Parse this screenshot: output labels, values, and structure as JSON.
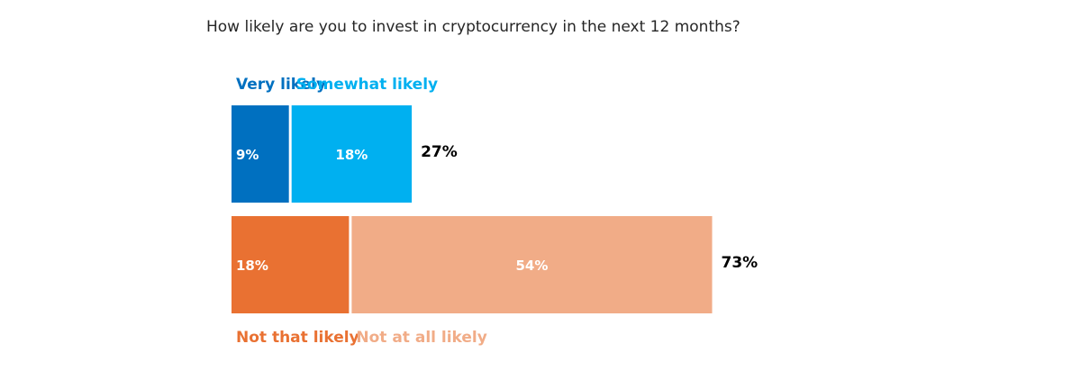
{
  "chart_data": {
    "type": "bar",
    "orientation": "horizontal",
    "stacked": true,
    "title": "How likely are you to invest in cryptocurrency in the next 12 months?",
    "xlabel": "",
    "ylabel": "",
    "grid": false,
    "legend": "segment labels above top bar and below bottom bar",
    "value_format": "{v}%",
    "bars": [
      {
        "total": 27,
        "total_label": "27%",
        "segments": [
          {
            "name": "Very likely",
            "value": 9,
            "label": "9%",
            "color": "#0070C0"
          },
          {
            "name": "Somewhat likely",
            "value": 18,
            "label": "18%",
            "color": "#00B0F0"
          }
        ]
      },
      {
        "total": 73,
        "total_label": "73%",
        "segments": [
          {
            "name": "Not that likely",
            "value": 18,
            "label": "18%",
            "color": "#E97132"
          },
          {
            "name": "Not at all likely",
            "value": 54,
            "label": "54%",
            "color": "#F1AC87"
          }
        ]
      }
    ]
  }
}
